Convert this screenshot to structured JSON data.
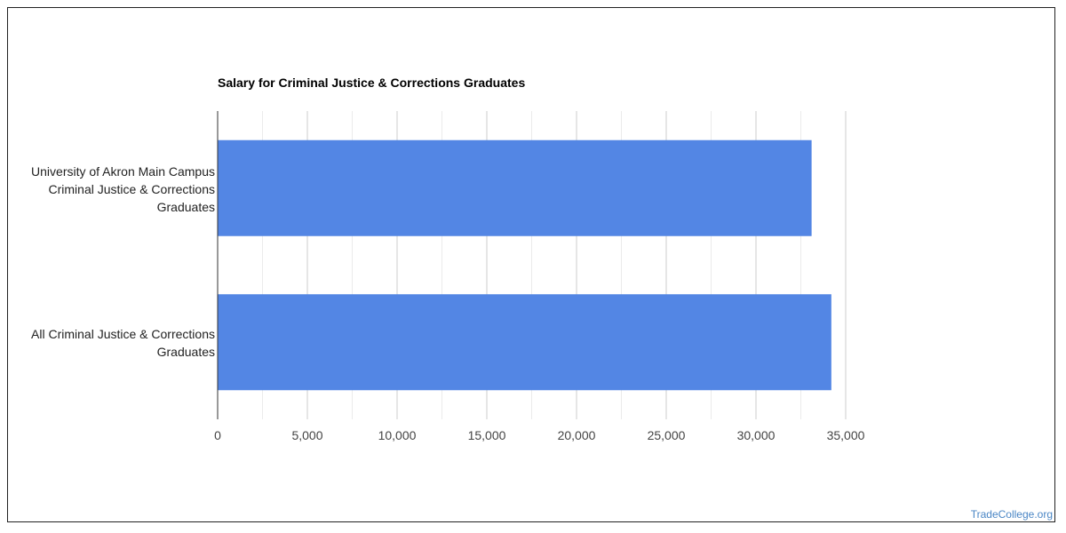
{
  "chart_data": {
    "type": "bar",
    "orientation": "horizontal",
    "title": "Salary for Criminal Justice & Corrections Graduates",
    "categories": [
      [
        "University of Akron Main Campus",
        "Criminal Justice & Corrections",
        "Graduates"
      ],
      [
        "All Criminal Justice & Corrections",
        "Graduates"
      ]
    ],
    "values": [
      33100,
      34200
    ],
    "xlim": [
      0,
      35000
    ],
    "ticks": [
      "0",
      "5,000",
      "10,000",
      "15,000",
      "20,000",
      "25,000",
      "30,000",
      "35,000"
    ],
    "grid": true,
    "bar_color": "#5386e4"
  },
  "watermark": "TradeCollege.org"
}
